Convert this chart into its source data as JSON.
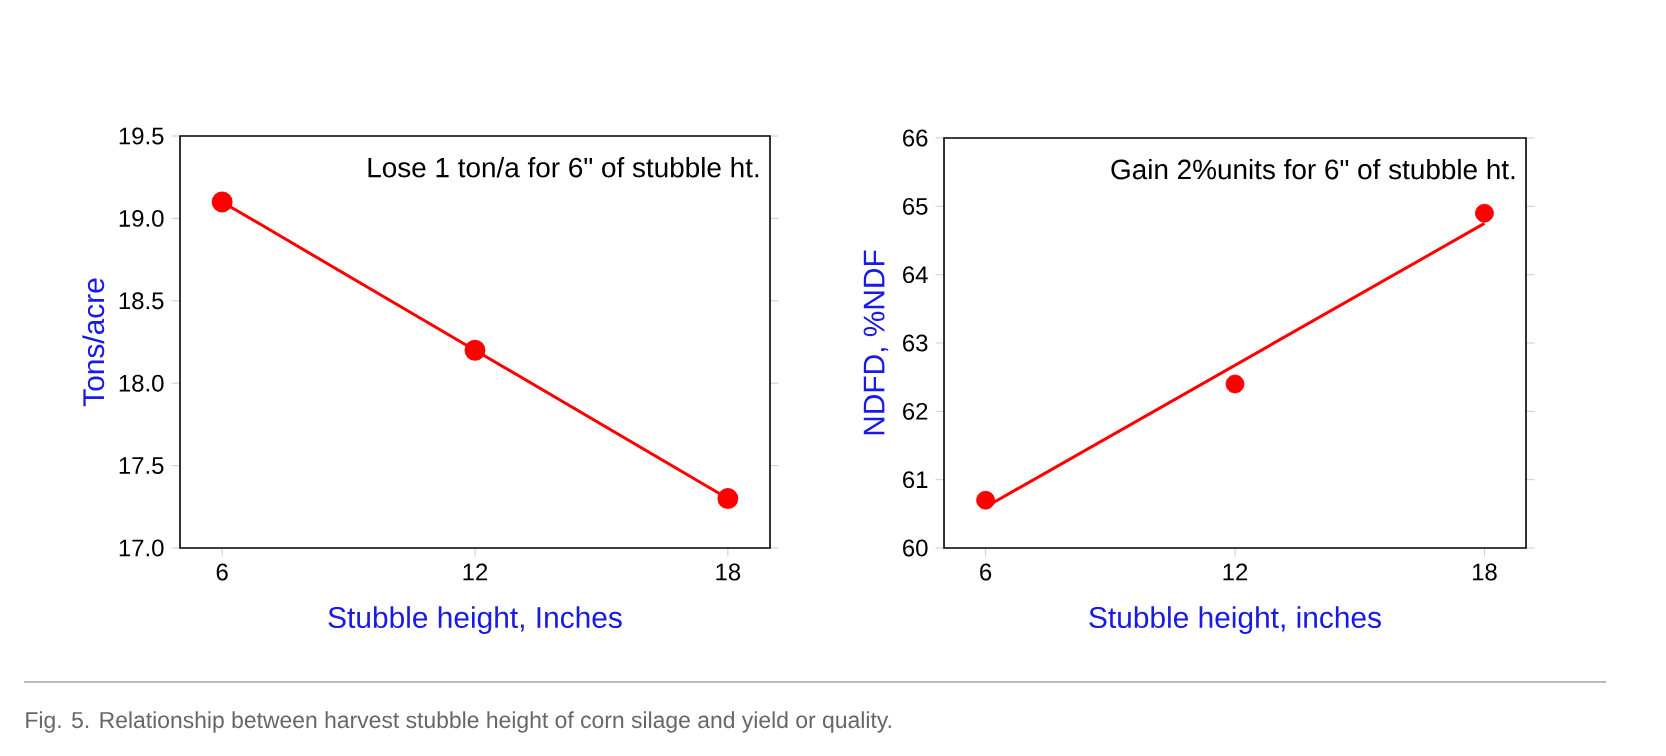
{
  "chart_data": [
    {
      "type": "line",
      "xlabel": "Stubble height, Inches",
      "ylabel": "Tons/acre",
      "x": [
        6,
        12,
        18
      ],
      "values": [
        19.1,
        18.2,
        17.3
      ],
      "color": "#ff0000",
      "marker": "circle",
      "line_style": "solid",
      "xlim": [
        5,
        19
      ],
      "ylim": [
        17,
        19.5
      ],
      "xticks": [
        6,
        12,
        18
      ],
      "yticks": [
        {
          "value": 17,
          "label": "17.0"
        },
        17.5,
        {
          "value": 18,
          "label": "18.0"
        },
        18.5,
        {
          "value": 19,
          "label": "19.0"
        },
        19.5
      ],
      "annotations": [
        "Lose 1 ton/a for 6\" of stubble ht.",
        "Fig. 5. Relationship between harvest stubble height of corn silage and yield or quality."
      ]
    },
    {
      "type": "scatter",
      "xlabel": "Stubble height, inches",
      "ylabel": "NDFD, %NDF",
      "series": [
        {
          "type": "scatter",
          "color": "#ff0000",
          "x": [
            6,
            12,
            18
          ],
          "values": [
            60.7,
            62.4,
            64.9
          ],
          "marker": "circle"
        },
        {
          "type": "line",
          "color": "#ff0000",
          "x": [
            6,
            18
          ],
          "values": [
            60.6,
            64.75
          ],
          "marker": "none",
          "line_style": "solid"
        }
      ],
      "xlim": [
        5,
        19
      ],
      "ylim": [
        60,
        66
      ],
      "xticks": [
        6,
        12,
        18
      ],
      "yticks": [
        60,
        61,
        62,
        63,
        64,
        65,
        66
      ],
      "annotations": [
        "Gain 2%units for 6\" of stubble ht."
      ]
    }
  ]
}
